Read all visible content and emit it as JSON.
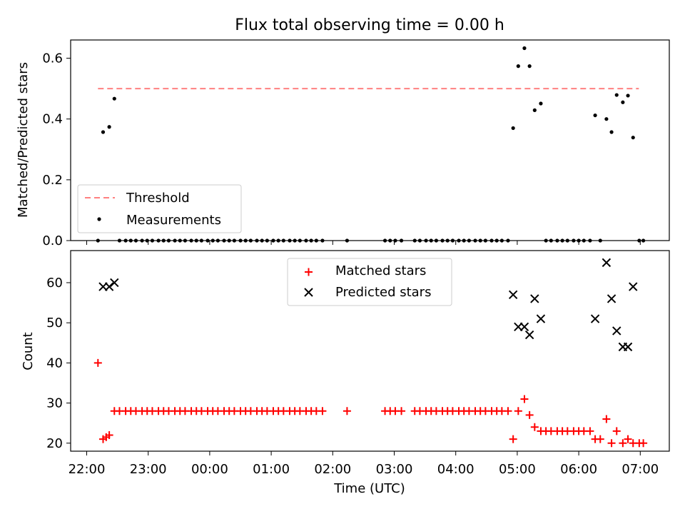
{
  "title": "Flux total observing time = 0.00 h",
  "chart_data": [
    {
      "type": "scatter",
      "ylabel": "Matched/Predicted stars",
      "xlabel": "",
      "ylim": [
        0.0,
        0.66
      ],
      "yticks": [
        0.0,
        0.2,
        0.4,
        0.6
      ],
      "ytick_labels": [
        "0.0",
        "0.2",
        "0.4",
        "0.6"
      ],
      "grid": false,
      "legend_position": "lower-left",
      "threshold": {
        "name": "Threshold",
        "value": 0.5,
        "x_start": "22:11",
        "x_end": "07:00",
        "color": "#ff8080",
        "style": "dashed"
      },
      "series": [
        {
          "name": "Measurements",
          "color": "#000000",
          "marker": "dot",
          "points": [
            [
              "22:11",
              0.0
            ],
            [
              "22:16",
              0.357
            ],
            [
              "22:22",
              0.374
            ],
            [
              "22:27",
              0.467
            ],
            [
              "22:32",
              0.0
            ],
            [
              "22:38",
              0.0
            ],
            [
              "22:43",
              0.0
            ],
            [
              "22:48",
              0.0
            ],
            [
              "22:54",
              0.0
            ],
            [
              "22:59",
              0.0
            ],
            [
              "23:04",
              0.0
            ],
            [
              "23:10",
              0.0
            ],
            [
              "23:15",
              0.0
            ],
            [
              "23:20",
              0.0
            ],
            [
              "23:26",
              0.0
            ],
            [
              "23:31",
              0.0
            ],
            [
              "23:36",
              0.0
            ],
            [
              "23:42",
              0.0
            ],
            [
              "23:47",
              0.0
            ],
            [
              "23:52",
              0.0
            ],
            [
              "23:58",
              0.0
            ],
            [
              "00:03",
              0.0
            ],
            [
              "00:08",
              0.0
            ],
            [
              "00:14",
              0.0
            ],
            [
              "00:19",
              0.0
            ],
            [
              "00:24",
              0.0
            ],
            [
              "00:30",
              0.0
            ],
            [
              "00:35",
              0.0
            ],
            [
              "00:40",
              0.0
            ],
            [
              "00:46",
              0.0
            ],
            [
              "00:51",
              0.0
            ],
            [
              "00:56",
              0.0
            ],
            [
              "01:02",
              0.0
            ],
            [
              "01:07",
              0.0
            ],
            [
              "01:12",
              0.0
            ],
            [
              "01:18",
              0.0
            ],
            [
              "01:23",
              0.0
            ],
            [
              "01:28",
              0.0
            ],
            [
              "01:34",
              0.0
            ],
            [
              "01:39",
              0.0
            ],
            [
              "01:44",
              0.0
            ],
            [
              "01:50",
              0.0
            ],
            [
              "02:14",
              0.0
            ],
            [
              "02:51",
              0.0
            ],
            [
              "02:56",
              0.0
            ],
            [
              "03:01",
              0.0
            ],
            [
              "03:07",
              0.0
            ],
            [
              "03:20",
              0.0
            ],
            [
              "03:25",
              0.0
            ],
            [
              "03:31",
              0.0
            ],
            [
              "03:36",
              0.0
            ],
            [
              "03:41",
              0.0
            ],
            [
              "03:47",
              0.0
            ],
            [
              "03:52",
              0.0
            ],
            [
              "03:57",
              0.0
            ],
            [
              "04:03",
              0.0
            ],
            [
              "04:08",
              0.0
            ],
            [
              "04:13",
              0.0
            ],
            [
              "04:19",
              0.0
            ],
            [
              "04:24",
              0.0
            ],
            [
              "04:29",
              0.0
            ],
            [
              "04:35",
              0.0
            ],
            [
              "04:40",
              0.0
            ],
            [
              "04:45",
              0.0
            ],
            [
              "04:51",
              0.0
            ],
            [
              "04:56",
              0.37
            ],
            [
              "05:01",
              0.574
            ],
            [
              "05:07",
              0.633
            ],
            [
              "05:12",
              0.574
            ],
            [
              "05:17",
              0.429
            ],
            [
              "05:23",
              0.451
            ],
            [
              "05:28",
              0.0
            ],
            [
              "05:33",
              0.0
            ],
            [
              "05:39",
              0.0
            ],
            [
              "05:44",
              0.0
            ],
            [
              "05:49",
              0.0
            ],
            [
              "05:55",
              0.0
            ],
            [
              "06:00",
              0.0
            ],
            [
              "06:05",
              0.0
            ],
            [
              "06:11",
              0.0
            ],
            [
              "06:16",
              0.412
            ],
            [
              "06:21",
              0.0
            ],
            [
              "06:27",
              0.4
            ],
            [
              "06:32",
              0.357
            ],
            [
              "06:37",
              0.479
            ],
            [
              "06:43",
              0.455
            ],
            [
              "06:48",
              0.477
            ],
            [
              "06:53",
              0.339
            ],
            [
              "06:59",
              0.0
            ],
            [
              "07:03",
              0.0
            ]
          ]
        }
      ]
    },
    {
      "type": "scatter",
      "ylabel": "Count",
      "xlabel": "Time (UTC)",
      "ylim": [
        18,
        68
      ],
      "yticks": [
        20,
        30,
        40,
        50,
        60
      ],
      "ytick_labels": [
        "20",
        "30",
        "40",
        "50",
        "60"
      ],
      "xticks": [
        "22:00",
        "23:00",
        "00:00",
        "01:00",
        "02:00",
        "03:00",
        "04:00",
        "05:00",
        "06:00",
        "07:00"
      ],
      "grid": false,
      "legend_position": "upper-center",
      "series": [
        {
          "name": "Matched stars",
          "color": "#ff0000",
          "marker": "plus",
          "points": [
            [
              "22:11",
              40
            ],
            [
              "22:16",
              21
            ],
            [
              "22:19",
              21.5
            ],
            [
              "22:22",
              22
            ],
            [
              "22:27",
              28
            ],
            [
              "22:32",
              28
            ],
            [
              "22:38",
              28
            ],
            [
              "22:43",
              28
            ],
            [
              "22:48",
              28
            ],
            [
              "22:54",
              28
            ],
            [
              "22:59",
              28
            ],
            [
              "23:04",
              28
            ],
            [
              "23:10",
              28
            ],
            [
              "23:15",
              28
            ],
            [
              "23:20",
              28
            ],
            [
              "23:26",
              28
            ],
            [
              "23:31",
              28
            ],
            [
              "23:36",
              28
            ],
            [
              "23:42",
              28
            ],
            [
              "23:47",
              28
            ],
            [
              "23:52",
              28
            ],
            [
              "23:58",
              28
            ],
            [
              "00:03",
              28
            ],
            [
              "00:08",
              28
            ],
            [
              "00:14",
              28
            ],
            [
              "00:19",
              28
            ],
            [
              "00:24",
              28
            ],
            [
              "00:30",
              28
            ],
            [
              "00:35",
              28
            ],
            [
              "00:40",
              28
            ],
            [
              "00:46",
              28
            ],
            [
              "00:51",
              28
            ],
            [
              "00:56",
              28
            ],
            [
              "01:02",
              28
            ],
            [
              "01:07",
              28
            ],
            [
              "01:12",
              28
            ],
            [
              "01:18",
              28
            ],
            [
              "01:23",
              28
            ],
            [
              "01:28",
              28
            ],
            [
              "01:34",
              28
            ],
            [
              "01:39",
              28
            ],
            [
              "01:44",
              28
            ],
            [
              "01:50",
              28
            ],
            [
              "02:14",
              28
            ],
            [
              "02:51",
              28
            ],
            [
              "02:56",
              28
            ],
            [
              "03:01",
              28
            ],
            [
              "03:07",
              28
            ],
            [
              "03:20",
              28
            ],
            [
              "03:25",
              28
            ],
            [
              "03:31",
              28
            ],
            [
              "03:36",
              28
            ],
            [
              "03:41",
              28
            ],
            [
              "03:47",
              28
            ],
            [
              "03:52",
              28
            ],
            [
              "03:57",
              28
            ],
            [
              "04:03",
              28
            ],
            [
              "04:08",
              28
            ],
            [
              "04:13",
              28
            ],
            [
              "04:19",
              28
            ],
            [
              "04:24",
              28
            ],
            [
              "04:29",
              28
            ],
            [
              "04:35",
              28
            ],
            [
              "04:40",
              28
            ],
            [
              "04:45",
              28
            ],
            [
              "04:51",
              28
            ],
            [
              "04:56",
              21
            ],
            [
              "05:01",
              28
            ],
            [
              "05:07",
              31
            ],
            [
              "05:12",
              27
            ],
            [
              "05:17",
              24
            ],
            [
              "05:23",
              23
            ],
            [
              "05:28",
              23
            ],
            [
              "05:33",
              23
            ],
            [
              "05:39",
              23
            ],
            [
              "05:44",
              23
            ],
            [
              "05:49",
              23
            ],
            [
              "05:55",
              23
            ],
            [
              "06:00",
              23
            ],
            [
              "06:05",
              23
            ],
            [
              "06:11",
              23
            ],
            [
              "06:16",
              21
            ],
            [
              "06:21",
              21
            ],
            [
              "06:27",
              26
            ],
            [
              "06:32",
              20
            ],
            [
              "06:37",
              23
            ],
            [
              "06:43",
              20
            ],
            [
              "06:48",
              21
            ],
            [
              "06:53",
              20
            ],
            [
              "06:59",
              20
            ],
            [
              "07:03",
              20
            ]
          ]
        },
        {
          "name": "Predicted stars",
          "color": "#000000",
          "marker": "x",
          "points": [
            [
              "22:16",
              59
            ],
            [
              "22:22",
              59
            ],
            [
              "22:27",
              60
            ],
            [
              "04:56",
              57
            ],
            [
              "05:01",
              49
            ],
            [
              "05:07",
              49
            ],
            [
              "05:12",
              47
            ],
            [
              "05:17",
              56
            ],
            [
              "05:23",
              51
            ],
            [
              "06:16",
              51
            ],
            [
              "06:27",
              65
            ],
            [
              "06:32",
              56
            ],
            [
              "06:37",
              48
            ],
            [
              "06:43",
              44
            ],
            [
              "06:48",
              44
            ],
            [
              "06:53",
              59
            ]
          ]
        }
      ]
    }
  ]
}
